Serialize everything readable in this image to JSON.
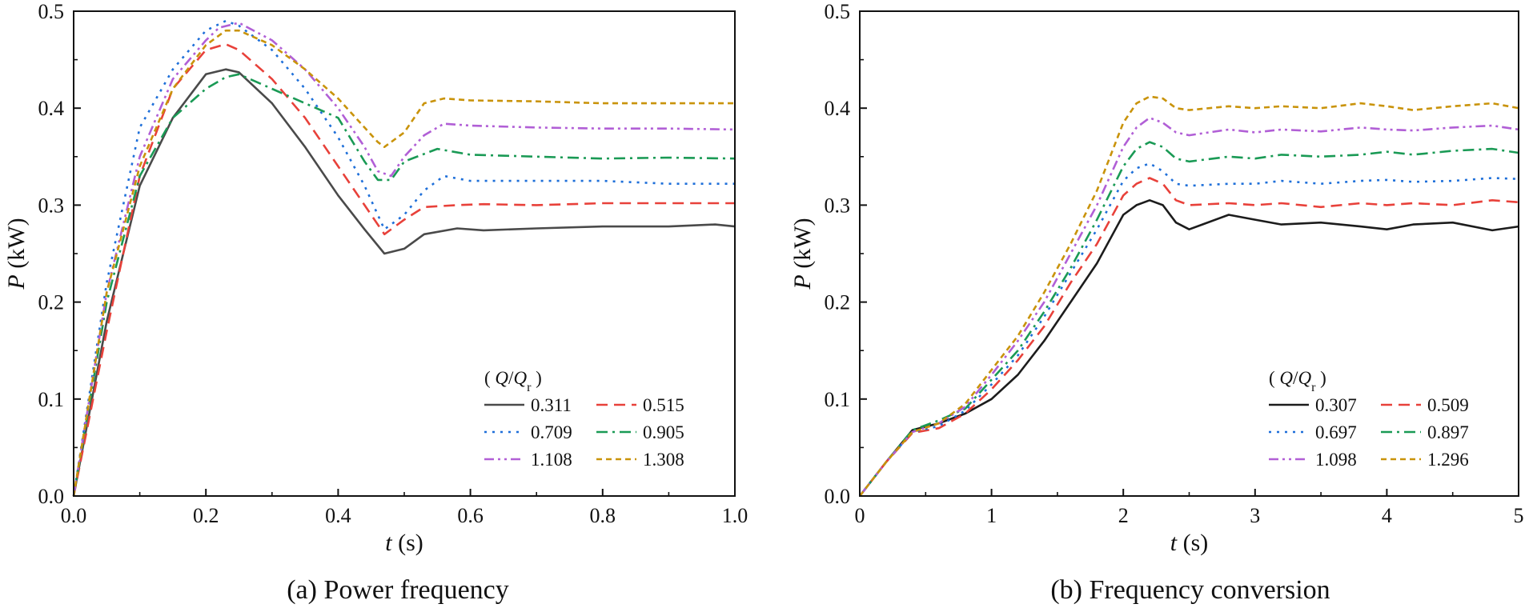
{
  "chart_data": [
    {
      "type": "line",
      "caption": "(a) Power frequency",
      "xlabel_var": "t",
      "xlabel_unit": " (s)",
      "ylabel_var": "P",
      "ylabel_unit": " (kW)",
      "xlim": [
        0,
        1.0
      ],
      "ylim": [
        0,
        0.5
      ],
      "xticks": [
        "0.0",
        "0.2",
        "0.4",
        "0.6",
        "0.8",
        "1.0"
      ],
      "yticks": [
        "0.0",
        "0.1",
        "0.2",
        "0.3",
        "0.4",
        "0.5"
      ],
      "legend_title_open": "( ",
      "legend_title_q": "Q",
      "legend_title_slash": "/",
      "legend_title_sub": "r",
      "legend_title_close": " )",
      "series": [
        {
          "name": "0.311",
          "color": "#4a4a4a",
          "dash": "solid",
          "x": [
            0,
            0.05,
            0.1,
            0.15,
            0.2,
            0.23,
            0.25,
            0.3,
            0.35,
            0.4,
            0.44,
            0.47,
            0.5,
            0.53,
            0.58,
            0.62,
            0.7,
            0.8,
            0.9,
            0.97,
            1.0
          ],
          "y": [
            0,
            0.18,
            0.32,
            0.39,
            0.435,
            0.44,
            0.437,
            0.405,
            0.36,
            0.31,
            0.275,
            0.25,
            0.255,
            0.27,
            0.276,
            0.274,
            0.276,
            0.278,
            0.278,
            0.28,
            0.278
          ]
        },
        {
          "name": "0.515",
          "color": "#e8413a",
          "dash": "long",
          "x": [
            0,
            0.05,
            0.1,
            0.15,
            0.2,
            0.23,
            0.25,
            0.3,
            0.35,
            0.4,
            0.44,
            0.47,
            0.5,
            0.53,
            0.58,
            0.62,
            0.7,
            0.8,
            0.9,
            1.0
          ],
          "y": [
            0,
            0.17,
            0.33,
            0.42,
            0.46,
            0.466,
            0.46,
            0.43,
            0.39,
            0.34,
            0.3,
            0.27,
            0.285,
            0.298,
            0.3,
            0.301,
            0.3,
            0.302,
            0.302,
            0.302
          ]
        },
        {
          "name": "0.709",
          "color": "#1e6fd9",
          "dash": "dot",
          "x": [
            0,
            0.05,
            0.1,
            0.15,
            0.2,
            0.23,
            0.25,
            0.3,
            0.35,
            0.4,
            0.44,
            0.47,
            0.5,
            0.53,
            0.56,
            0.6,
            0.7,
            0.8,
            0.9,
            1.0
          ],
          "y": [
            0,
            0.22,
            0.38,
            0.44,
            0.48,
            0.49,
            0.485,
            0.46,
            0.42,
            0.37,
            0.32,
            0.275,
            0.29,
            0.315,
            0.33,
            0.325,
            0.325,
            0.325,
            0.322,
            0.322
          ]
        },
        {
          "name": "0.905",
          "color": "#1a9a55",
          "dash": "dashdot",
          "x": [
            0,
            0.05,
            0.1,
            0.15,
            0.2,
            0.23,
            0.25,
            0.3,
            0.35,
            0.4,
            0.44,
            0.46,
            0.48,
            0.5,
            0.55,
            0.6,
            0.7,
            0.8,
            0.9,
            1.0
          ],
          "y": [
            0,
            0.2,
            0.33,
            0.39,
            0.42,
            0.432,
            0.435,
            0.42,
            0.405,
            0.39,
            0.345,
            0.326,
            0.326,
            0.345,
            0.358,
            0.352,
            0.35,
            0.348,
            0.349,
            0.348
          ]
        },
        {
          "name": "1.108",
          "color": "#b15fd6",
          "dash": "dashdotdot",
          "x": [
            0,
            0.05,
            0.1,
            0.15,
            0.2,
            0.22,
            0.25,
            0.3,
            0.35,
            0.4,
            0.44,
            0.46,
            0.48,
            0.5,
            0.53,
            0.56,
            0.6,
            0.7,
            0.8,
            0.9,
            1.0
          ],
          "y": [
            0,
            0.21,
            0.35,
            0.43,
            0.47,
            0.483,
            0.488,
            0.47,
            0.44,
            0.4,
            0.36,
            0.335,
            0.33,
            0.35,
            0.372,
            0.384,
            0.382,
            0.38,
            0.379,
            0.379,
            0.378
          ]
        },
        {
          "name": "1.308",
          "color": "#c9930a",
          "dash": "short",
          "x": [
            0,
            0.05,
            0.1,
            0.15,
            0.2,
            0.23,
            0.25,
            0.3,
            0.35,
            0.4,
            0.44,
            0.46,
            0.47,
            0.5,
            0.53,
            0.56,
            0.6,
            0.7,
            0.8,
            0.9,
            1.0
          ],
          "y": [
            0,
            0.21,
            0.34,
            0.42,
            0.465,
            0.48,
            0.48,
            0.465,
            0.44,
            0.41,
            0.38,
            0.365,
            0.36,
            0.375,
            0.405,
            0.41,
            0.408,
            0.407,
            0.405,
            0.405,
            0.405
          ]
        }
      ]
    },
    {
      "type": "line",
      "caption": "(b) Frequency conversion",
      "xlabel_var": "t",
      "xlabel_unit": " (s)",
      "ylabel_var": "P",
      "ylabel_unit": " (kW)",
      "xlim": [
        0,
        5
      ],
      "ylim": [
        0,
        0.5
      ],
      "xticks": [
        "0",
        "1",
        "2",
        "3",
        "4",
        "5"
      ],
      "yticks": [
        "0.0",
        "0.1",
        "0.2",
        "0.3",
        "0.4",
        "0.5"
      ],
      "legend_title_open": "( ",
      "legend_title_q": "Q",
      "legend_title_slash": "/",
      "legend_title_sub": "r",
      "legend_title_close": " )",
      "series": [
        {
          "name": "0.307",
          "color": "#1c1c1c",
          "dash": "solid",
          "x": [
            0,
            0.2,
            0.4,
            0.6,
            0.8,
            1.0,
            1.2,
            1.4,
            1.6,
            1.8,
            2.0,
            2.1,
            2.2,
            2.3,
            2.4,
            2.5,
            2.6,
            2.8,
            3.0,
            3.2,
            3.5,
            3.8,
            4.0,
            4.2,
            4.5,
            4.8,
            5.0
          ],
          "y": [
            0,
            0.035,
            0.068,
            0.075,
            0.085,
            0.1,
            0.125,
            0.16,
            0.2,
            0.24,
            0.29,
            0.3,
            0.305,
            0.3,
            0.282,
            0.275,
            0.28,
            0.29,
            0.285,
            0.28,
            0.282,
            0.278,
            0.275,
            0.28,
            0.282,
            0.274,
            0.278
          ]
        },
        {
          "name": "0.509",
          "color": "#e8413a",
          "dash": "long",
          "x": [
            0,
            0.2,
            0.4,
            0.6,
            0.8,
            1.0,
            1.2,
            1.4,
            1.6,
            1.8,
            2.0,
            2.1,
            2.2,
            2.3,
            2.4,
            2.5,
            2.8,
            3.0,
            3.2,
            3.5,
            3.8,
            4.0,
            4.2,
            4.5,
            4.8,
            5.0
          ],
          "y": [
            0,
            0.035,
            0.065,
            0.07,
            0.085,
            0.11,
            0.14,
            0.175,
            0.22,
            0.26,
            0.31,
            0.322,
            0.328,
            0.322,
            0.305,
            0.3,
            0.302,
            0.3,
            0.302,
            0.298,
            0.302,
            0.3,
            0.302,
            0.3,
            0.305,
            0.303
          ]
        },
        {
          "name": "0.697",
          "color": "#1e6fd9",
          "dash": "dot",
          "x": [
            0,
            0.2,
            0.4,
            0.6,
            0.8,
            1.0,
            1.2,
            1.4,
            1.6,
            1.8,
            2.0,
            2.1,
            2.2,
            2.3,
            2.4,
            2.5,
            2.8,
            3.0,
            3.2,
            3.5,
            3.8,
            4.0,
            4.2,
            4.5,
            4.8,
            5.0
          ],
          "y": [
            0,
            0.035,
            0.066,
            0.072,
            0.088,
            0.115,
            0.145,
            0.185,
            0.23,
            0.275,
            0.325,
            0.338,
            0.343,
            0.335,
            0.322,
            0.32,
            0.322,
            0.322,
            0.325,
            0.322,
            0.325,
            0.326,
            0.324,
            0.325,
            0.328,
            0.327
          ]
        },
        {
          "name": "0.897",
          "color": "#1a9a55",
          "dash": "dashdot",
          "x": [
            0,
            0.2,
            0.4,
            0.6,
            0.8,
            1.0,
            1.2,
            1.4,
            1.6,
            1.8,
            2.0,
            2.1,
            2.2,
            2.3,
            2.4,
            2.5,
            2.8,
            3.0,
            3.2,
            3.5,
            3.8,
            4.0,
            4.2,
            4.5,
            4.8,
            5.0
          ],
          "y": [
            0,
            0.035,
            0.068,
            0.078,
            0.09,
            0.12,
            0.15,
            0.19,
            0.235,
            0.285,
            0.34,
            0.358,
            0.365,
            0.36,
            0.348,
            0.345,
            0.35,
            0.348,
            0.352,
            0.35,
            0.352,
            0.355,
            0.352,
            0.356,
            0.358,
            0.354
          ]
        },
        {
          "name": "1.098",
          "color": "#b15fd6",
          "dash": "dashdotdot",
          "x": [
            0,
            0.2,
            0.4,
            0.6,
            0.8,
            1.0,
            1.2,
            1.4,
            1.6,
            1.8,
            2.0,
            2.1,
            2.2,
            2.3,
            2.4,
            2.5,
            2.8,
            3.0,
            3.2,
            3.5,
            3.8,
            4.0,
            4.2,
            4.5,
            4.8,
            5.0
          ],
          "y": [
            0,
            0.035,
            0.066,
            0.075,
            0.092,
            0.125,
            0.16,
            0.2,
            0.25,
            0.3,
            0.36,
            0.38,
            0.39,
            0.385,
            0.375,
            0.372,
            0.378,
            0.375,
            0.378,
            0.376,
            0.38,
            0.378,
            0.377,
            0.38,
            0.382,
            0.378
          ]
        },
        {
          "name": "1.296",
          "color": "#c9930a",
          "dash": "short",
          "x": [
            0,
            0.2,
            0.4,
            0.6,
            0.8,
            1.0,
            1.2,
            1.4,
            1.6,
            1.8,
            2.0,
            2.1,
            2.2,
            2.3,
            2.4,
            2.5,
            2.8,
            3.0,
            3.2,
            3.5,
            3.8,
            4.0,
            4.2,
            4.5,
            4.8,
            5.0
          ],
          "y": [
            0,
            0.035,
            0.066,
            0.075,
            0.095,
            0.13,
            0.165,
            0.21,
            0.26,
            0.315,
            0.385,
            0.405,
            0.412,
            0.41,
            0.4,
            0.398,
            0.402,
            0.4,
            0.402,
            0.4,
            0.405,
            0.402,
            0.398,
            0.402,
            0.405,
            0.4
          ]
        }
      ]
    }
  ]
}
